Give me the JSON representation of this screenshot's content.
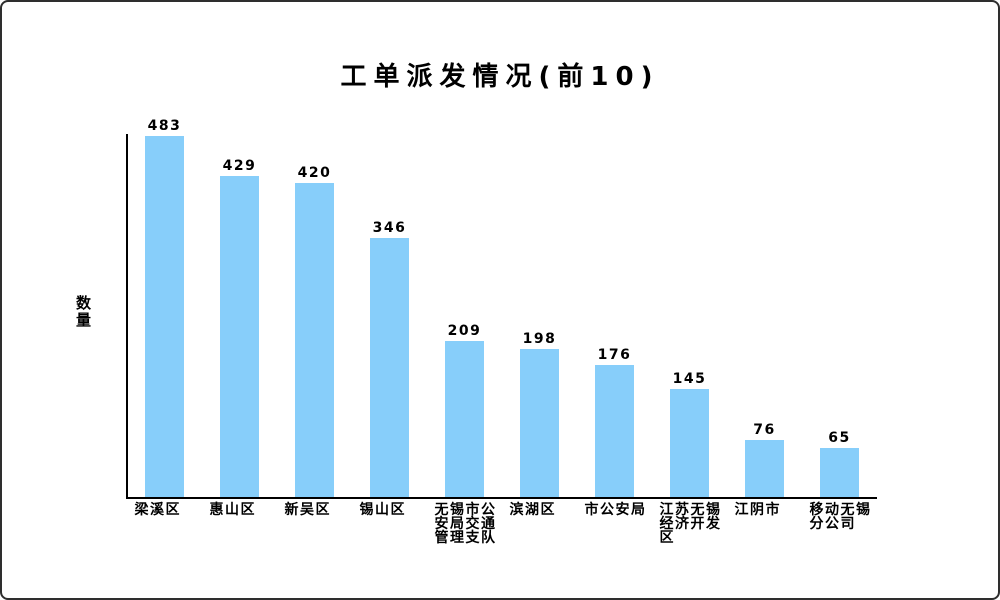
{
  "frame": {
    "background": "#ffffff",
    "border_color": "#2e2e2e"
  },
  "chart_data": {
    "type": "bar",
    "title": "工单派发情况(前10)",
    "xlabel": "",
    "ylabel": "数量",
    "categories": [
      "梁溪区",
      "惠山区",
      "新吴区",
      "锡山区",
      "无锡市公安局交通管理支队",
      "滨湖区",
      "市公安局",
      "江苏无锡经济开发区",
      "江阴市",
      "移动无锡分公司"
    ],
    "values": [
      483,
      429,
      420,
      346,
      209,
      198,
      176,
      145,
      76,
      65
    ],
    "value_labels_shown": true,
    "bar_color": "#87CEFA",
    "axis_color": "#000000",
    "text_color": "#000000",
    "ylim": [
      0,
      490
    ],
    "y_axis_ticks": [],
    "grid": false,
    "legend": false
  }
}
